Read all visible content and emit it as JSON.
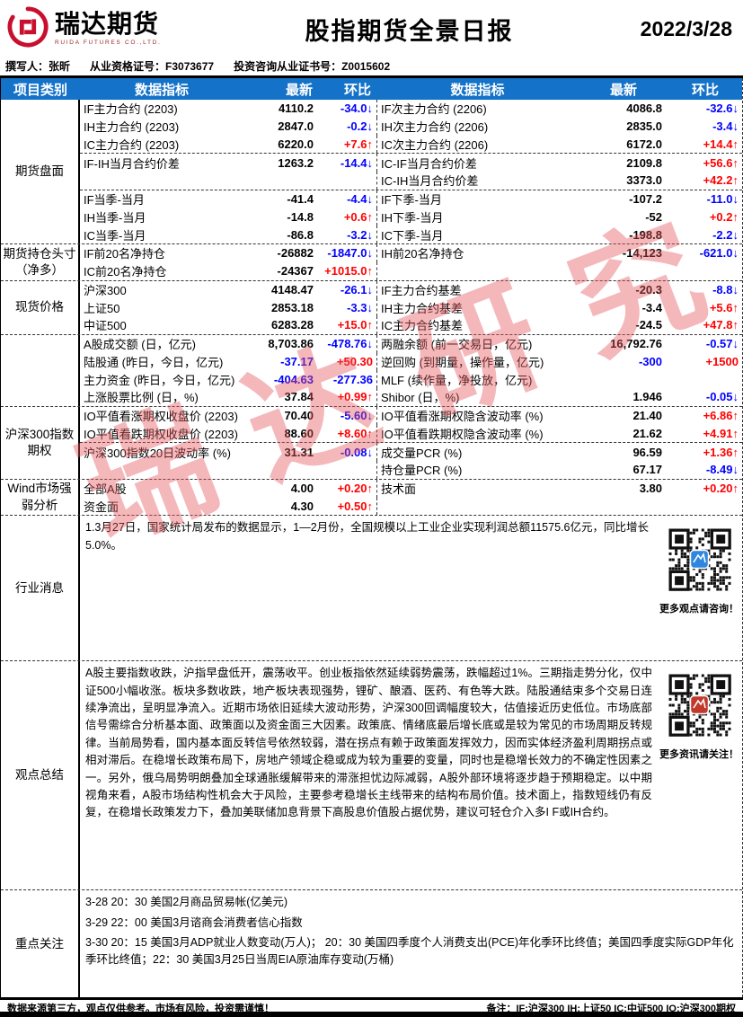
{
  "colors": {
    "header_blue": "#1472C8",
    "up_red": "#FF0000",
    "down_blue": "#0000FF",
    "logo_red": "#C8102E",
    "watermark_red": "#E4565E",
    "qr_badge_blue": "#2E86DE",
    "qr_badge_red": "#C0392B"
  },
  "header": {
    "logo_text": "瑞达期货",
    "logo_sub": "RUIDA FUTURES CO.,LTD.",
    "title": "股指期货全景日报",
    "date": "2022/3/28"
  },
  "meta": {
    "author": "撰写人：张昕",
    "cert": "从业资格证号：F3073677",
    "consult": "投资咨询从业证书号：Z0015602"
  },
  "watermark": {
    "text": "瑞达研究"
  },
  "table": {
    "headers": [
      "项目类别",
      "数据指标",
      "最新",
      "环比",
      "数据指标",
      "最新",
      "环比"
    ],
    "sections": [
      {
        "category": "期货盘面",
        "groups": [
          [
            {
              "l": [
                "IF主力合约 (2203)",
                "4110.2",
                "-34.0↓"
              ],
              "r": [
                "IF次主力合约 (2206)",
                "4086.8",
                "-32.6↓"
              ]
            },
            {
              "l": [
                "IH主力合约 (2203)",
                "2847.0",
                "-0.2↓"
              ],
              "r": [
                "IH次主力合约 (2206)",
                "2835.0",
                "-3.4↓"
              ]
            },
            {
              "l": [
                "IC主力合约 (2203)",
                "6220.0",
                "+7.6↑"
              ],
              "r": [
                "IC次主力合约 (2206)",
                "6172.0",
                "+14.4↑"
              ]
            }
          ],
          [
            {
              "l": [
                "IF-IH当月合约价差",
                "1263.2",
                "-14.4↓"
              ],
              "r": [
                "IC-IF当月合约价差",
                "2109.8",
                "+56.6↑"
              ]
            },
            {
              "l": [
                "",
                "",
                ""
              ],
              "r": [
                "IC-IH当月合约价差",
                "3373.0",
                "+42.2↑"
              ]
            }
          ],
          [
            {
              "l": [
                "IF当季-当月",
                "-41.4",
                "-4.4↓"
              ],
              "r": [
                "IF下季-当月",
                "-107.2",
                "-11.0↓"
              ]
            },
            {
              "l": [
                "IH当季-当月",
                "-14.8",
                "+0.6↑"
              ],
              "r": [
                "IH下季-当月",
                "-52",
                "+0.2↑"
              ]
            },
            {
              "l": [
                "IC当季-当月",
                "-86.8",
                "-3.2↓"
              ],
              "r": [
                "IC下季-当月",
                "-198.8",
                "-2.2↓"
              ]
            }
          ]
        ]
      },
      {
        "category": "期货持仓头寸\n（净多）",
        "groups": [
          [
            {
              "l": [
                "IF前20名净持仓",
                "-26882",
                "-1847.0↓"
              ],
              "r": [
                "IH前20名净持仓",
                "-14,123",
                "-621.0↓"
              ]
            },
            {
              "l": [
                "IC前20名净持仓",
                "-24367",
                "+1015.0↑"
              ],
              "r": [
                "",
                "",
                ""
              ]
            }
          ]
        ]
      },
      {
        "category": "现货价格",
        "groups": [
          [
            {
              "l": [
                "沪深300",
                "4148.47",
                "-26.1↓"
              ],
              "r": [
                "IF主力合约基差",
                "-20.3",
                "-8.8↓"
              ]
            },
            {
              "l": [
                "上证50",
                "2853.18",
                "-3.3↓"
              ],
              "r": [
                "IH主力合约基差",
                "-3.4",
                "+5.6↑"
              ]
            },
            {
              "l": [
                "中证500",
                "6283.28",
                "+15.0↑"
              ],
              "r": [
                "IC主力合约基差",
                "-24.5",
                "+47.8↑"
              ]
            }
          ]
        ]
      },
      {
        "category": "",
        "groups": [
          [
            {
              "l": [
                "A股成交额 (日，亿元)",
                "8,703.86",
                "-478.76↓"
              ],
              "r": [
                "两融余额 (前一交易日，亿元)",
                "16,792.76",
                "-0.57↓"
              ]
            },
            {
              "l": [
                "陆股通 (昨日，今日，亿元)",
                "-37.17",
                "+50.30"
              ],
              "lvc": "#0000FF",
              "r": [
                "逆回购 (到期量，操作量，亿元)",
                "-300",
                "+1500"
              ],
              "rvc": "#0000FF"
            },
            {
              "l": [
                "主力资金 (昨日，今日，亿元)",
                "-404.63",
                "-277.36"
              ],
              "lvc": "#0000FF",
              "r": [
                "MLF (续作量，净投放，亿元)",
                "",
                ""
              ]
            },
            {
              "l": [
                "上涨股票比例 (日，%)",
                "37.84",
                "+0.99↑"
              ],
              "r": [
                "Shibor (日，%)",
                "1.946",
                "-0.05↓"
              ]
            }
          ]
        ]
      },
      {
        "category": "沪深300指数\n期权",
        "groups": [
          [
            {
              "l": [
                "IO平值看涨期权收盘价 (2203)",
                "70.40",
                "-5.60↓"
              ],
              "r": [
                "IO平值看涨期权隐含波动率 (%)",
                "21.40",
                "+6.86↑"
              ]
            },
            {
              "l": [
                "IO平值看跌期权收盘价 (2203)",
                "88.60",
                "+8.60↑"
              ],
              "r": [
                "IO平值看跌期权隐含波动率 (%)",
                "21.62",
                "+4.91↑"
              ]
            }
          ],
          [
            {
              "l": [
                "沪深300指数20日波动率 (%)",
                "31.31",
                "-0.08↓"
              ],
              "r": [
                "成交量PCR (%)",
                "96.59",
                "+1.36↑"
              ]
            },
            {
              "l": [
                "",
                "",
                ""
              ],
              "r": [
                "持仓量PCR (%)",
                "67.17",
                "-8.49↓"
              ]
            }
          ]
        ]
      },
      {
        "category": "Wind市场强\n弱分析",
        "groups": [
          [
            {
              "l": [
                "全部A股",
                "4.00",
                "+0.20↑"
              ],
              "r": [
                "技术面",
                "3.80",
                "+0.20↑"
              ]
            },
            {
              "l": [
                "资金面",
                "4.30",
                "+0.50↑"
              ],
              "r": [
                "",
                "",
                ""
              ]
            }
          ]
        ]
      }
    ]
  },
  "industry_news": {
    "label": "行业消息",
    "text": "1.3月27日，国家统计局发布的数据显示，1—2月份，全国规模以上工业企业实现利润总额11575.6亿元，同比增长5.0%。",
    "qr_caption": "更多观点请咨询！"
  },
  "summary": {
    "label": "观点总结",
    "text": "A股主要指数收跌，沪指早盘低开，震荡收平。创业板指依然延续弱势震荡，跌幅超过1%。三期指走势分化，仅中证500小幅收涨。板块多数收跌，地产板块表现强势，锂矿、酿酒、医药、有色等大跌。陆股通结束多个交易日连续净流出，呈明显净流入。近期市场依旧延续大波动形势，沪深300回调幅度较大，估值接近历史低位。市场底部信号需综合分析基本面、政策面以及资金面三大因素。政策底、情绪底最后增长底或是较为常见的市场周期反转规律。当前局势看，国内基本面反转信号依然较弱，潜在拐点有赖于政策面发挥效力，因而实体经济盈利周期拐点或相对滞后。在稳增长政策布局下，房地产领域企稳或成为较为重要的变量，同时也是稳增长效力的不确定性因素之一。另外，俄乌局势明朗叠加全球通胀缓解带来的滞涨担忧边际减弱，A股外部环境将逐步趋于预期稳定。以中期视角来看，A股市场结构性机会大于风险，主要参考稳增长主线带来的结构布局价值。技术面上，指数短线仍有反复，在稳增长政策发力下，叠加美联储加息背景下高股息价值股占据优势，建议可轻仓介入多I F或IH合约。",
    "qr_caption": "更多资讯请关注！"
  },
  "focus": {
    "label": "重点关注",
    "lines": [
      "3-28 20：30 美国2月商品贸易帐(亿美元)",
      "3-29 22：00 美国3月谘商会消费者信心指数",
      "3-30  20：15 美国3月ADP就业人数变动(万人)；  20：30 美国四季度个人消费支出(PCE)年化季环比终值；美国四季度实际GDP年化季环比终值；22：30 美国3月25日当周EIA原油库存变动(万桶)"
    ]
  },
  "footer": {
    "disclaimer": "数据来源第三方，观点仅供参考。市场有风险，投资需谨慎！",
    "note": "备注：IF:沪深300 IH:上证50 IC:中证500 IO:沪深300期权"
  }
}
